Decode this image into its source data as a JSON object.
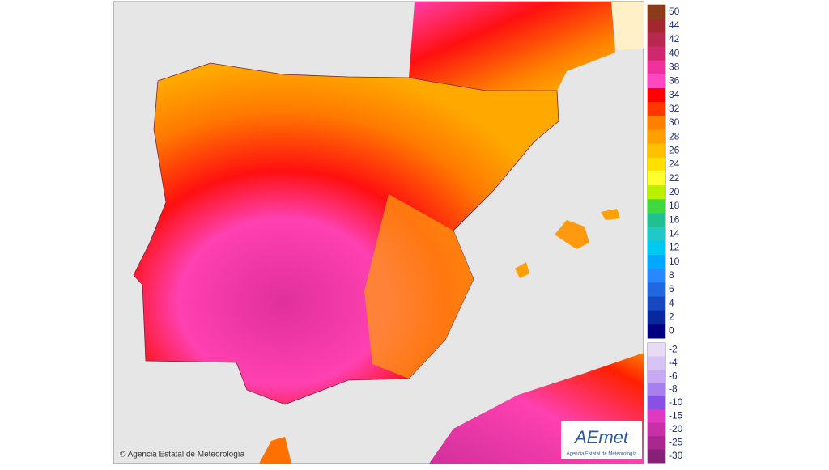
{
  "legend": {
    "upper": {
      "labels": [
        "50",
        "44",
        "42",
        "40",
        "38",
        "36",
        "34",
        "32",
        "30",
        "28",
        "26",
        "24",
        "22",
        "20",
        "18",
        "16",
        "14",
        "12",
        "10",
        "8",
        "6",
        "4",
        "2",
        "0"
      ],
      "colors": [
        "#8b3a1a",
        "#a0282e",
        "#b8284e",
        "#d0286e",
        "#f0309c",
        "#ff48c0",
        "#ff0000",
        "#ff3800",
        "#ff8000",
        "#ffa000",
        "#ffc000",
        "#ffe000",
        "#ffff30",
        "#b8f000",
        "#40d840",
        "#20c090",
        "#20c8c8",
        "#00c8f0",
        "#00a8ff",
        "#2888ff",
        "#2068e0",
        "#1848c0",
        "#0828a0",
        "#000080"
      ]
    },
    "lower": {
      "labels": [
        "-2",
        "-4",
        "-6",
        "-8",
        "-10",
        "-15",
        "-20",
        "-25",
        "-30"
      ],
      "colors": [
        "#e8dcf4",
        "#d8c4f2",
        "#c8a8f0",
        "#a880ee",
        "#8850e4",
        "#e038c0",
        "#c830a8",
        "#a82890",
        "#882078"
      ]
    }
  },
  "copyright": "© Agencia Estatal de Meteorología",
  "logo": {
    "name": "AEmet",
    "subtitle": "Agencia Estatal de Meteorología"
  }
}
